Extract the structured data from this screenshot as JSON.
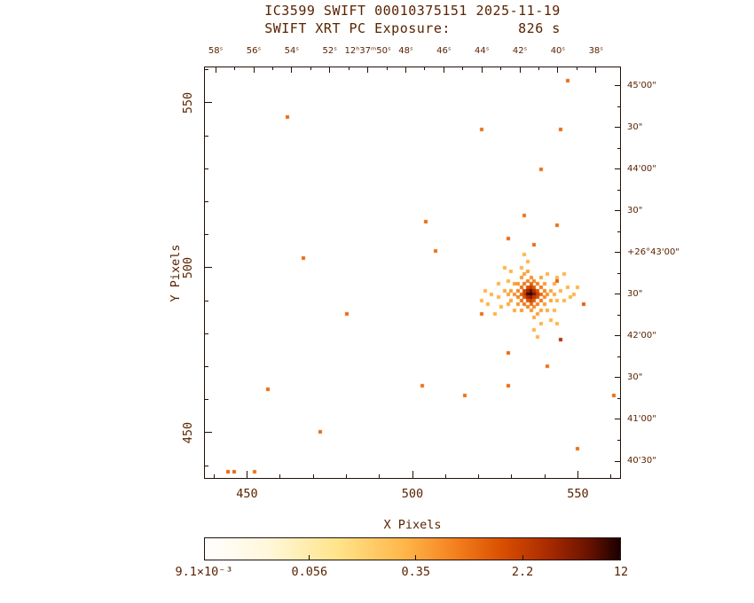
{
  "chart_data": {
    "type": "heatmap",
    "title": "IC3599 SWIFT 00010375151 2025-11-19",
    "subtitle": "SWIFT XRT PC Exposure:        826 s",
    "xlabel": "X Pixels",
    "ylabel": "Y Pixels",
    "x_range": [
      437,
      563
    ],
    "y_range": [
      436,
      561
    ],
    "x_ticks": [
      450,
      500,
      550
    ],
    "y_ticks": [
      450,
      500,
      550
    ],
    "minor_tick_step": 10,
    "grid": false,
    "ra_axis": {
      "labels": [
        "58ˢ",
        "56ˢ",
        "54ˢ",
        "52ˢ",
        "12ʰ37ᵐ50ˢ",
        "48ˢ",
        "46ˢ",
        "44ˢ",
        "42ˢ",
        "40ˢ",
        "38ˢ"
      ],
      "span": [
        0.028,
        0.94
      ]
    },
    "dec_axis": {
      "labels": [
        "45'00\"",
        "30\"",
        "44'00\"",
        "30\"",
        "+26°43'00\"",
        "30\"",
        "42'00\"",
        "30\"",
        "41'00\"",
        "40'30\""
      ],
      "span": [
        0.047,
        0.957
      ]
    },
    "colorbar": {
      "scale": "log",
      "vmin": 0.0091,
      "vmax": 12,
      "tick_values": [
        0.0091,
        0.056,
        0.35,
        2.2,
        12
      ],
      "tick_labels": [
        "9.1×10⁻³",
        "0.056",
        "0.35",
        "2.2",
        "12"
      ],
      "stops": [
        [
          0.0,
          "#ffffff"
        ],
        [
          0.15,
          "#fff8dc"
        ],
        [
          0.32,
          "#ffe48a"
        ],
        [
          0.48,
          "#ffb74a"
        ],
        [
          0.6,
          "#f58220"
        ],
        [
          0.72,
          "#d84e00"
        ],
        [
          0.83,
          "#a82a00"
        ],
        [
          0.92,
          "#6e1400"
        ],
        [
          1.0,
          "#1c0000"
        ]
      ]
    },
    "points": [
      [
        547,
        557,
        1.0
      ],
      [
        462,
        546,
        1.0
      ],
      [
        521,
        542,
        0.9
      ],
      [
        545,
        542,
        1.0
      ],
      [
        539,
        530,
        0.9
      ],
      [
        534,
        516,
        0.9
      ],
      [
        504,
        514,
        1.0
      ],
      [
        544,
        513,
        0.9
      ],
      [
        529,
        509,
        1.0
      ],
      [
        537,
        507,
        1.0
      ],
      [
        507,
        505,
        0.9
      ],
      [
        467,
        503,
        1.0
      ],
      [
        544,
        496,
        1.1
      ],
      [
        480,
        486,
        1.0
      ],
      [
        552,
        489,
        1.2
      ],
      [
        521,
        486,
        0.9
      ],
      [
        545,
        478,
        3.0
      ],
      [
        529,
        474,
        1.0
      ],
      [
        541,
        470,
        0.9
      ],
      [
        456,
        463,
        1.0
      ],
      [
        503,
        464,
        0.9
      ],
      [
        516,
        461,
        0.9
      ],
      [
        529,
        464,
        1.0
      ],
      [
        561,
        461,
        1.0
      ],
      [
        472,
        450,
        1.0
      ],
      [
        550,
        445,
        0.9
      ],
      [
        444,
        438,
        1.1
      ],
      [
        446,
        438,
        1.1
      ],
      [
        452,
        438,
        0.9
      ],
      [
        536,
        492,
        12
      ],
      [
        535,
        492,
        9
      ],
      [
        536,
        493,
        7
      ],
      [
        537,
        492,
        6
      ],
      [
        536,
        491,
        5
      ],
      [
        535,
        493,
        4
      ],
      [
        537,
        493,
        3
      ],
      [
        535,
        491,
        3.5
      ],
      [
        537,
        491,
        2.5
      ],
      [
        534,
        492,
        2.2
      ],
      [
        538,
        492,
        2
      ],
      [
        536,
        494,
        2.4
      ],
      [
        536,
        490,
        2
      ],
      [
        534,
        493,
        1.8
      ],
      [
        538,
        491,
        1.6
      ],
      [
        534,
        491,
        1.5
      ],
      [
        538,
        493,
        1.4
      ],
      [
        535,
        494,
        1.6
      ],
      [
        537,
        494,
        1.3
      ],
      [
        535,
        490,
        1.4
      ],
      [
        537,
        490,
        1.2
      ],
      [
        533,
        492,
        1.2
      ],
      [
        539,
        492,
        1.0
      ],
      [
        536,
        495,
        1.1
      ],
      [
        536,
        489,
        1.0
      ],
      [
        533,
        494,
        0.9
      ],
      [
        539,
        494,
        0.8
      ],
      [
        533,
        490,
        0.85
      ],
      [
        539,
        490,
        0.8
      ],
      [
        534,
        495,
        0.8
      ],
      [
        538,
        495,
        0.75
      ],
      [
        534,
        489,
        0.8
      ],
      [
        538,
        489,
        0.7
      ],
      [
        532,
        493,
        0.7
      ],
      [
        540,
        493,
        0.65
      ],
      [
        532,
        491,
        0.65
      ],
      [
        540,
        491,
        0.6
      ],
      [
        535,
        496,
        0.7
      ],
      [
        537,
        496,
        0.6
      ],
      [
        535,
        488,
        0.65
      ],
      [
        537,
        488,
        0.6
      ],
      [
        531,
        492,
        0.55
      ],
      [
        541,
        492,
        0.5
      ],
      [
        536,
        497,
        0.55
      ],
      [
        536,
        487,
        0.5
      ],
      [
        532,
        495,
        0.5
      ],
      [
        540,
        495,
        0.45
      ],
      [
        532,
        489,
        0.5
      ],
      [
        540,
        489,
        0.45
      ],
      [
        530,
        493,
        0.45
      ],
      [
        542,
        493,
        0.4
      ],
      [
        533,
        497,
        0.45
      ],
      [
        539,
        497,
        0.4
      ],
      [
        533,
        487,
        0.45
      ],
      [
        539,
        487,
        0.4
      ],
      [
        530,
        490,
        0.4
      ],
      [
        542,
        490,
        0.4
      ],
      [
        534,
        498,
        0.4
      ],
      [
        538,
        486,
        0.4
      ],
      [
        529,
        492,
        0.4
      ],
      [
        543,
        492,
        0.35
      ],
      [
        531,
        495,
        0.4
      ],
      [
        541,
        487,
        0.35
      ],
      [
        529,
        489,
        0.35
      ],
      [
        543,
        495,
        0.35
      ],
      [
        535,
        499,
        0.4
      ],
      [
        537,
        485,
        0.35
      ],
      [
        528,
        493,
        0.35
      ],
      [
        544,
        490,
        0.3
      ],
      [
        531,
        487,
        0.35
      ],
      [
        541,
        498,
        0.3
      ],
      [
        526,
        491,
        0.3
      ],
      [
        545,
        493,
        0.3
      ],
      [
        533,
        500,
        0.3
      ],
      [
        539,
        483,
        0.3
      ],
      [
        527,
        488,
        0.3
      ],
      [
        546,
        490,
        0.3
      ],
      [
        529,
        496,
        0.3
      ],
      [
        543,
        487,
        0.3
      ],
      [
        524,
        492,
        0.3
      ],
      [
        547,
        494,
        0.3
      ],
      [
        535,
        502,
        0.3
      ],
      [
        537,
        481,
        0.3
      ],
      [
        526,
        495,
        0.3
      ],
      [
        544,
        497,
        0.3
      ],
      [
        523,
        489,
        0.3
      ],
      [
        548,
        491,
        0.3
      ],
      [
        530,
        499,
        0.3
      ],
      [
        542,
        484,
        0.3
      ],
      [
        525,
        486,
        0.3
      ],
      [
        546,
        498,
        0.3
      ],
      [
        534,
        504,
        0.3
      ],
      [
        538,
        479,
        0.3
      ],
      [
        522,
        493,
        0.3
      ],
      [
        549,
        492,
        0.3
      ],
      [
        528,
        500,
        0.3
      ],
      [
        544,
        483,
        0.3
      ],
      [
        521,
        490,
        0.3
      ],
      [
        550,
        494,
        0.3
      ]
    ]
  }
}
